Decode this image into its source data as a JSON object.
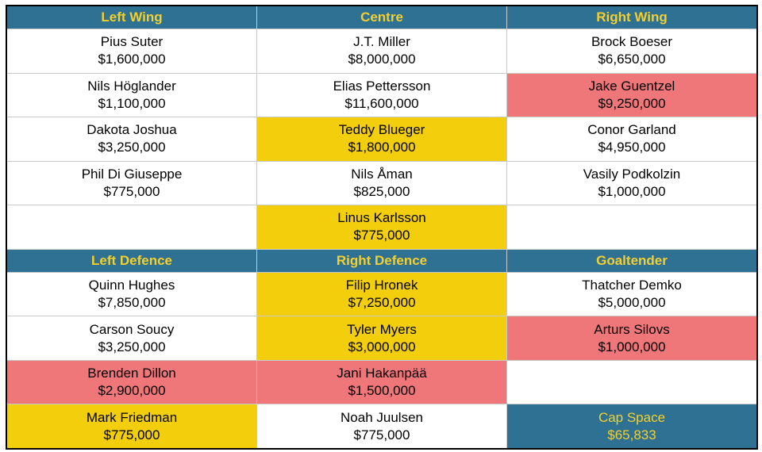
{
  "colors": {
    "header_bg": "#2e7193",
    "header_text": "#f5cf2b",
    "yellow": "#f2ce0c",
    "red": "#ef777a",
    "white": "#ffffff"
  },
  "forwards": {
    "headers": [
      "Left Wing",
      "Centre",
      "Right Wing"
    ],
    "rows": [
      [
        {
          "name": "Pius Suter",
          "salary": "$1,600,000",
          "status": "white"
        },
        {
          "name": "J.T. Miller",
          "salary": "$8,000,000",
          "status": "white"
        },
        {
          "name": "Brock Boeser",
          "salary": "$6,650,000",
          "status": "white"
        }
      ],
      [
        {
          "name": "Nils Höglander",
          "salary": "$1,100,000",
          "status": "white"
        },
        {
          "name": "Elias Pettersson",
          "salary": "$11,600,000",
          "status": "white"
        },
        {
          "name": "Jake Guentzel",
          "salary": "$9,250,000",
          "status": "red"
        }
      ],
      [
        {
          "name": "Dakota Joshua",
          "salary": "$3,250,000",
          "status": "white"
        },
        {
          "name": "Teddy Blueger",
          "salary": "$1,800,000",
          "status": "yellow"
        },
        {
          "name": "Conor Garland",
          "salary": "$4,950,000",
          "status": "white"
        }
      ],
      [
        {
          "name": "Phil Di Giuseppe",
          "salary": "$775,000",
          "status": "white"
        },
        {
          "name": "Nils Åman",
          "salary": "$825,000",
          "status": "white"
        },
        {
          "name": "Vasily Podkolzin",
          "salary": "$1,000,000",
          "status": "white"
        }
      ],
      [
        {
          "name": "",
          "salary": "",
          "status": "white"
        },
        {
          "name": "Linus Karlsson",
          "salary": "$775,000",
          "status": "yellow"
        },
        {
          "name": "",
          "salary": "",
          "status": "white"
        }
      ]
    ]
  },
  "defence": {
    "headers": [
      "Left Defence",
      "Right Defence",
      "Goaltender"
    ],
    "rows": [
      [
        {
          "name": "Quinn Hughes",
          "salary": "$7,850,000",
          "status": "white"
        },
        {
          "name": "Filip Hronek",
          "salary": "$7,250,000",
          "status": "yellow"
        },
        {
          "name": "Thatcher Demko",
          "salary": "$5,000,000",
          "status": "white"
        }
      ],
      [
        {
          "name": "Carson Soucy",
          "salary": "$3,250,000",
          "status": "white"
        },
        {
          "name": "Tyler Myers",
          "salary": "$3,000,000",
          "status": "yellow"
        },
        {
          "name": "Arturs Silovs",
          "salary": "$1,000,000",
          "status": "red"
        }
      ],
      [
        {
          "name": "Brenden Dillon",
          "salary": "$2,900,000",
          "status": "red"
        },
        {
          "name": "Jani Hakanpää",
          "salary": "$1,500,000",
          "status": "red"
        },
        {
          "name": "",
          "salary": "",
          "status": "white"
        }
      ],
      [
        {
          "name": "Mark Friedman",
          "salary": "$775,000",
          "status": "yellow"
        },
        {
          "name": "Noah Juulsen",
          "salary": "$775,000",
          "status": "white"
        },
        {
          "name": "Cap Space",
          "salary": "$65,833",
          "status": "cap"
        }
      ]
    ]
  }
}
